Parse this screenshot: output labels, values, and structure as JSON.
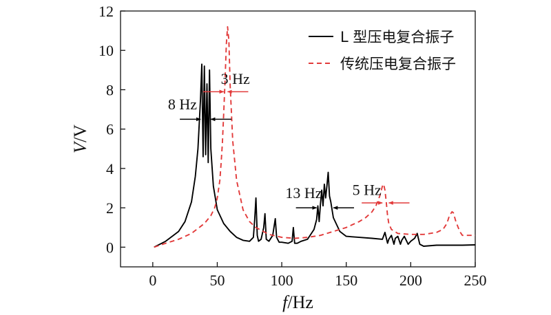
{
  "chart_data": {
    "type": "line",
    "title": "",
    "xlabel": {
      "var": "f",
      "unit": "/Hz"
    },
    "ylabel": {
      "var": "V",
      "unit": "/V"
    },
    "xlim": [
      -25,
      250
    ],
    "ylim": [
      -1,
      12
    ],
    "xticks": [
      0,
      50,
      100,
      150,
      200,
      250
    ],
    "yticks": [
      0,
      2,
      4,
      6,
      8,
      10,
      12
    ],
    "grid": false,
    "legend_position": "top-right",
    "series": [
      {
        "name": "L 型压电复合振子",
        "color": "#000000",
        "style": "solid",
        "x": [
          1,
          10,
          20,
          25,
          30,
          33,
          35,
          37,
          38,
          39,
          40,
          41,
          42,
          43,
          44,
          45,
          47,
          50,
          55,
          60,
          65,
          70,
          75,
          78,
          79,
          80,
          81,
          82,
          84,
          86,
          87,
          88,
          90,
          93,
          95,
          96,
          98,
          100,
          105,
          108,
          109,
          110,
          112,
          115,
          120,
          125,
          127,
          128,
          129,
          130,
          131,
          132,
          133,
          134,
          135,
          136,
          137,
          138,
          140,
          145,
          150,
          160,
          170,
          178,
          180,
          182,
          183,
          185,
          187,
          188,
          190,
          192,
          193,
          195,
          198,
          200,
          203,
          205,
          207,
          210,
          220,
          230,
          240,
          250
        ],
        "y": [
          0.0,
          0.3,
          0.8,
          1.3,
          2.3,
          3.6,
          5.0,
          7.5,
          9.3,
          4.6,
          9.2,
          4.7,
          8.3,
          4.3,
          9.0,
          5.0,
          3.1,
          1.9,
          1.2,
          0.8,
          0.5,
          0.35,
          0.3,
          0.5,
          1.4,
          2.5,
          0.6,
          0.3,
          0.4,
          1.0,
          1.7,
          0.4,
          0.3,
          0.6,
          1.45,
          0.5,
          0.25,
          0.25,
          0.2,
          0.3,
          1.0,
          0.2,
          0.2,
          0.3,
          0.4,
          0.9,
          1.4,
          2.1,
          1.3,
          2.2,
          2.9,
          2.1,
          3.2,
          2.5,
          3.1,
          3.8,
          2.6,
          2.3,
          1.5,
          0.8,
          0.55,
          0.5,
          0.45,
          0.4,
          0.75,
          0.2,
          0.4,
          0.6,
          0.15,
          0.45,
          0.55,
          0.15,
          0.35,
          0.55,
          0.15,
          0.3,
          0.45,
          0.7,
          0.15,
          0.05,
          0.1,
          0.1,
          0.1,
          0.12
        ]
      },
      {
        "name": "传统压电复合振子",
        "color": "#e23a3a",
        "style": "dashed",
        "x": [
          1,
          10,
          20,
          30,
          40,
          45,
          48,
          50,
          52,
          53,
          54,
          55,
          56,
          57,
          58,
          59,
          60,
          62,
          65,
          70,
          75,
          80,
          90,
          100,
          110,
          120,
          130,
          140,
          150,
          160,
          165,
          170,
          173,
          176,
          178,
          179,
          180,
          181,
          182,
          183,
          185,
          190,
          200,
          210,
          220,
          225,
          228,
          230,
          232,
          233,
          235,
          238,
          240,
          250
        ],
        "y": [
          0.0,
          0.2,
          0.4,
          0.7,
          1.2,
          1.6,
          2.0,
          2.5,
          3.4,
          4.3,
          5.3,
          6.8,
          8.4,
          10.3,
          11.2,
          10.5,
          8.2,
          5.4,
          3.4,
          1.9,
          1.3,
          1.0,
          0.65,
          0.5,
          0.45,
          0.5,
          0.6,
          0.8,
          1.0,
          1.3,
          1.5,
          1.8,
          2.1,
          2.6,
          3.1,
          3.2,
          2.9,
          2.3,
          1.6,
          1.2,
          0.9,
          0.7,
          0.65,
          0.65,
          0.75,
          0.9,
          1.2,
          1.6,
          1.8,
          1.75,
          1.3,
          0.8,
          0.6,
          0.6
        ]
      }
    ],
    "annotations": [
      {
        "id": "gap-8hz",
        "text": "8 Hz",
        "x1": 37,
        "x2": 45,
        "y": 6.5,
        "color": "#000000",
        "label_x": 23,
        "label_y": 7.0
      },
      {
        "id": "gap-3hz",
        "text": "3 Hz",
        "x1": 55,
        "x2": 58,
        "y": 7.9,
        "color": "#e23a3a",
        "label_x": 64,
        "label_y": 8.3
      },
      {
        "id": "gap-13hz",
        "text": "13 Hz",
        "x1": 127,
        "x2": 140,
        "y": 2.0,
        "color": "#000000",
        "label_x": 117,
        "label_y": 2.5
      },
      {
        "id": "gap-5hz",
        "text": "5 Hz",
        "x1": 178,
        "x2": 183,
        "y": 2.25,
        "color": "#e23a3a",
        "label_x": 166,
        "label_y": 2.65
      }
    ]
  }
}
